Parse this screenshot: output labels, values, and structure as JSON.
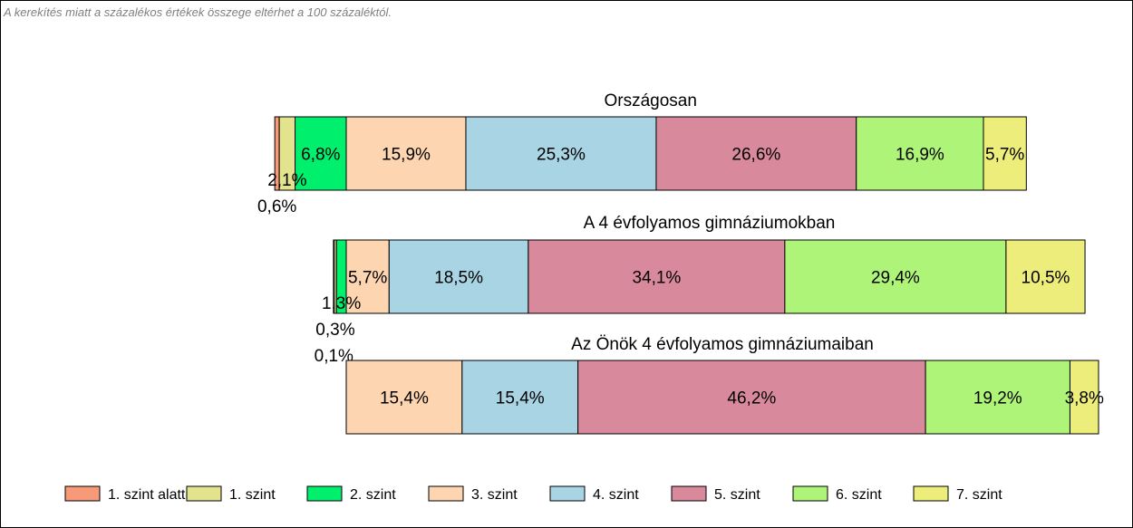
{
  "note": "A kerekítés miatt a  százalékos értékek összege eltérhet a 100 százaléktól.",
  "chart_data": {
    "type": "bar",
    "orientation": "horizontal-stacked",
    "legend_position": "bottom",
    "levels": [
      {
        "name": "1. szint alatti",
        "color": "#f79a79"
      },
      {
        "name": "1. szint",
        "color": "#e3e38d"
      },
      {
        "name": "2. szint",
        "color": "#00f06e"
      },
      {
        "name": "3. szint",
        "color": "#fdd5b1"
      },
      {
        "name": "4. szint",
        "color": "#a8d4e4"
      },
      {
        "name": "5. szint",
        "color": "#d9899c"
      },
      {
        "name": "6. szint",
        "color": "#aef479"
      },
      {
        "name": "7. szint",
        "color": "#eded7c"
      }
    ],
    "bars": [
      {
        "title": "Országosan",
        "values": [
          0.6,
          2.1,
          6.8,
          15.9,
          25.3,
          26.6,
          16.9,
          5.7
        ],
        "labels": [
          "0,6%",
          "2,1%",
          "6,8%",
          "15,9%",
          "25,3%",
          "26,6%",
          "16,9%",
          "5,7%"
        ]
      },
      {
        "title": "A 4 évfolyamos gimnáziumokban",
        "values": [
          0.1,
          0.3,
          1.3,
          5.7,
          18.5,
          34.1,
          29.4,
          10.5
        ],
        "labels": [
          "0,1%",
          "0,3%",
          "1,3%",
          "5,7%",
          "18,5%",
          "34,1%",
          "29,4%",
          "10,5%"
        ]
      },
      {
        "title": "Az Önök 4 évfolyamos gimnáziumaiban",
        "values": [
          0,
          0,
          0,
          15.4,
          15.4,
          46.2,
          19.2,
          3.8
        ],
        "labels": [
          "",
          "",
          "",
          "15,4%",
          "15,4%",
          "46,2%",
          "19,2%",
          "3,8%"
        ]
      }
    ]
  }
}
